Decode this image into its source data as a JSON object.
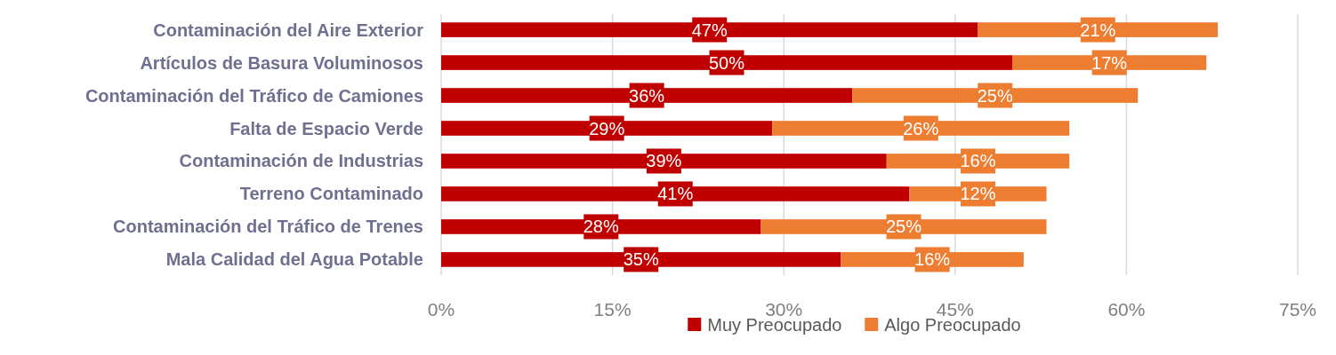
{
  "chart_data": {
    "type": "bar",
    "orientation": "horizontal",
    "stacked": true,
    "categories": [
      "Contaminación del Aire Exterior",
      "Artículos de Basura Voluminosos",
      "Contaminación del Tráfico de Camiones",
      "Falta de Espacio Verde",
      "Contaminación de Industrias",
      "Terreno Contaminado",
      "Contaminación del Tráfico de Trenes",
      "Mala Calidad del Agua Potable"
    ],
    "series": [
      {
        "name": "Muy Preocupado",
        "color": "#c00000",
        "values": [
          47,
          50,
          36,
          29,
          39,
          41,
          28,
          35
        ],
        "value_labels": [
          "47%",
          "50%",
          "36%",
          "29%",
          "39%",
          "41%",
          "28%",
          "35%"
        ]
      },
      {
        "name": "Algo Preocupado",
        "color": "#ed7d31",
        "values": [
          21,
          17,
          25,
          26,
          16,
          12,
          25,
          16
        ],
        "value_labels": [
          "21%",
          "17%",
          "25%",
          "26%",
          "16%",
          "12%",
          "25%",
          "16%"
        ]
      }
    ],
    "xlim": [
      0,
      75
    ],
    "xticks": [
      {
        "value": 0,
        "label": "0%"
      },
      {
        "value": 15,
        "label": "15%"
      },
      {
        "value": 30,
        "label": "30%"
      },
      {
        "value": 45,
        "label": "45%"
      },
      {
        "value": 60,
        "label": "60%"
      },
      {
        "value": 75,
        "label": "75%"
      }
    ],
    "grid": "x",
    "legend": "bottom"
  }
}
